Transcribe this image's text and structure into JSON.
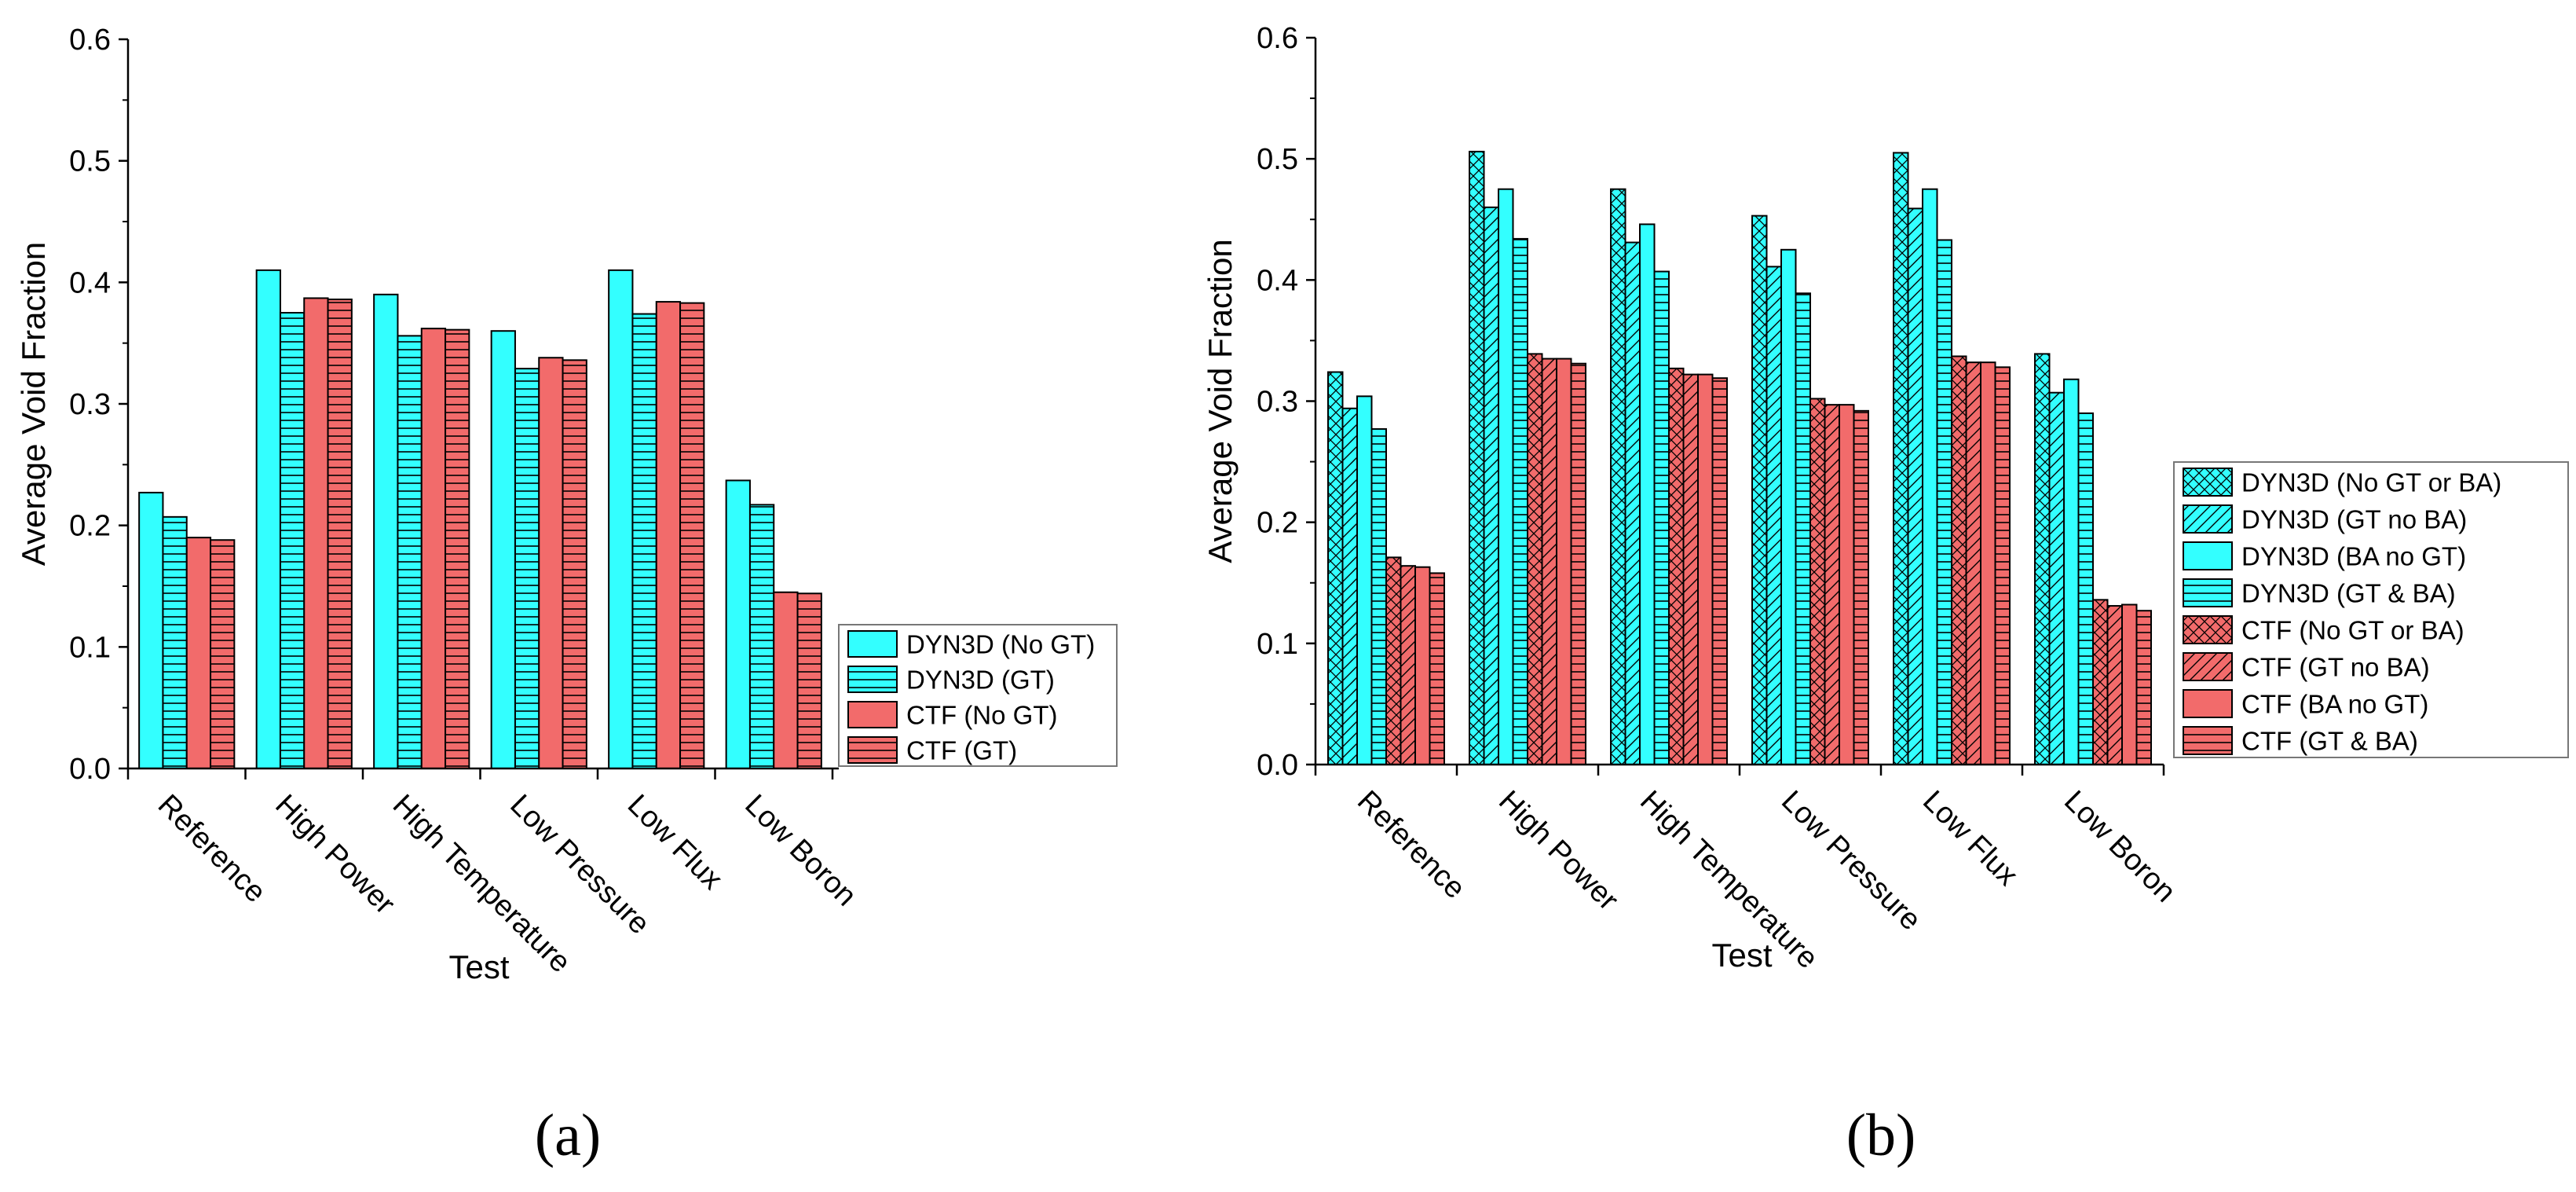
{
  "chart_data": [
    {
      "type": "bar",
      "panel_label": "a",
      "xlabel": "Test",
      "ylabel": "Average Void Fraction",
      "ylim": [
        0,
        0.6
      ],
      "yticks": [
        "0.0",
        "0.1",
        "0.2",
        "0.3",
        "0.4",
        "0.5",
        "0.6"
      ],
      "categories": [
        "Reference",
        "High Power",
        "High Temperature",
        "Low Pressure",
        "Low Flux",
        "Low Boron"
      ],
      "legend_position": "right",
      "series": [
        {
          "name": "DYN3D (No GT)",
          "color": "#33ffff",
          "pattern": "none",
          "values": [
            0.227,
            0.41,
            0.39,
            0.36,
            0.41,
            0.237
          ]
        },
        {
          "name": "DYN3D (GT)",
          "color": "#33ffff",
          "pattern": "horizontal",
          "values": [
            0.207,
            0.375,
            0.356,
            0.329,
            0.374,
            0.217
          ]
        },
        {
          "name": "CTF (No GT)",
          "color": "#f26b6b",
          "pattern": "none",
          "values": [
            0.19,
            0.387,
            0.362,
            0.338,
            0.384,
            0.145
          ]
        },
        {
          "name": "CTF (GT)",
          "color": "#f26b6b",
          "pattern": "horizontal",
          "values": [
            0.188,
            0.386,
            0.361,
            0.336,
            0.383,
            0.144
          ]
        }
      ]
    },
    {
      "type": "bar",
      "panel_label": "b",
      "xlabel": "Test",
      "ylabel": "Average Void Fraction",
      "ylim": [
        0,
        0.6
      ],
      "yticks": [
        "0.0",
        "0.1",
        "0.2",
        "0.3",
        "0.4",
        "0.5",
        "0.6"
      ],
      "categories": [
        "Reference",
        "High Power",
        "High Temperature",
        "Low Pressure",
        "Low Flux",
        "Low Boron"
      ],
      "legend_position": "right",
      "series": [
        {
          "name": "DYN3D (No GT or BA)",
          "color": "#33ffff",
          "pattern": "crosshatch",
          "values": [
            0.324,
            0.506,
            0.475,
            0.453,
            0.505,
            0.339
          ]
        },
        {
          "name": "DYN3D (GT no BA)",
          "color": "#33ffff",
          "pattern": "diagonal",
          "values": [
            0.294,
            0.46,
            0.431,
            0.411,
            0.459,
            0.307
          ]
        },
        {
          "name": "DYN3D (BA no GT)",
          "color": "#33ffff",
          "pattern": "none",
          "values": [
            0.304,
            0.475,
            0.446,
            0.425,
            0.475,
            0.318
          ]
        },
        {
          "name": "DYN3D (GT & BA)",
          "color": "#33ffff",
          "pattern": "horizontal",
          "values": [
            0.277,
            0.434,
            0.407,
            0.389,
            0.433,
            0.29
          ]
        },
        {
          "name": "CTF (No GT or BA)",
          "color": "#f26b6b",
          "pattern": "crosshatch",
          "values": [
            0.171,
            0.339,
            0.327,
            0.302,
            0.337,
            0.136
          ]
        },
        {
          "name": "CTF (GT no BA)",
          "color": "#f26b6b",
          "pattern": "diagonal",
          "values": [
            0.164,
            0.335,
            0.322,
            0.297,
            0.332,
            0.131
          ]
        },
        {
          "name": "CTF (BA no GT)",
          "color": "#f26b6b",
          "pattern": "none",
          "values": [
            0.163,
            0.335,
            0.322,
            0.297,
            0.332,
            0.132
          ]
        },
        {
          "name": "CTF (GT & BA)",
          "color": "#f26b6b",
          "pattern": "horizontal",
          "values": [
            0.158,
            0.331,
            0.319,
            0.292,
            0.328,
            0.127
          ]
        }
      ]
    }
  ]
}
